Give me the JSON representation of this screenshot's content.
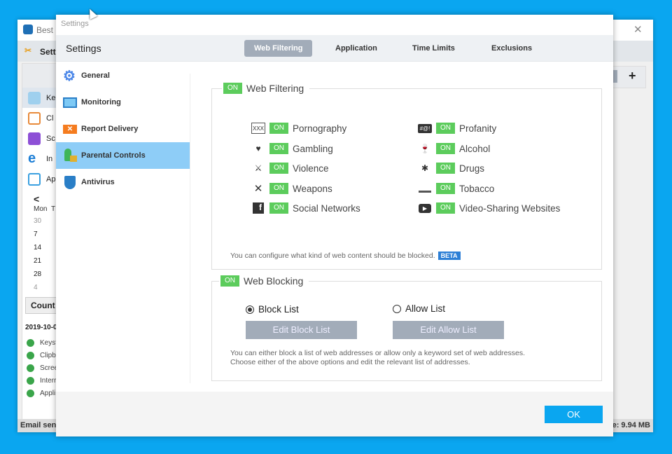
{
  "background_app": {
    "title": "Best F",
    "toolbar_label": "Setti",
    "sidebar_items": [
      "Ke",
      "Cl",
      "Sc",
      "In",
      "Ap"
    ],
    "calendar": {
      "prev": "<",
      "headers": [
        "Mon",
        "T"
      ],
      "mondays": [
        "30",
        "7",
        "14",
        "21",
        "28",
        "4"
      ]
    },
    "count_button": "Count",
    "date": "2019-10-0",
    "status_items": [
      "Keyst",
      "Clipb",
      "Scree",
      "Interr",
      "Appli"
    ],
    "status_left": "Email send",
    "status_right": "ze: 9.94 MB",
    "add_button": "+",
    "close": "✕"
  },
  "dialog": {
    "window_title": "Settings",
    "header_title": "Settings",
    "tabs": [
      {
        "label": "Web Filtering",
        "active": true
      },
      {
        "label": "Application"
      },
      {
        "label": "Time Limits"
      },
      {
        "label": "Exclusions"
      }
    ],
    "nav": [
      {
        "label": "General",
        "icon": "gear-icon"
      },
      {
        "label": "Monitoring",
        "icon": "monitor-icon"
      },
      {
        "label": "Report Delivery",
        "icon": "envelope-icon"
      },
      {
        "label": "Parental Controls",
        "icon": "parental-lock-icon",
        "selected": true
      },
      {
        "label": "Antivirus",
        "icon": "shield-icon"
      }
    ],
    "web_filtering": {
      "toggle": "ON",
      "title": "Web Filtering",
      "categories": [
        {
          "label": "Pornography",
          "toggle": "ON",
          "icon": "xxx-monitor-icon"
        },
        {
          "label": "Gambling",
          "toggle": "ON",
          "icon": "playing-card-icon"
        },
        {
          "label": "Violence",
          "toggle": "ON",
          "icon": "fight-icon"
        },
        {
          "label": "Weapons",
          "toggle": "ON",
          "icon": "crossed-swords-icon"
        },
        {
          "label": "Social Networks",
          "toggle": "ON",
          "icon": "facebook-icon"
        },
        {
          "label": "Profanity",
          "toggle": "ON",
          "icon": "profanity-bubble-icon"
        },
        {
          "label": "Alcohol",
          "toggle": "ON",
          "icon": "bottle-glass-icon"
        },
        {
          "label": "Drugs",
          "toggle": "ON",
          "icon": "cannabis-leaf-icon"
        },
        {
          "label": "Tobacco",
          "toggle": "ON",
          "icon": "cigarette-icon"
        },
        {
          "label": "Video-Sharing Websites",
          "toggle": "ON",
          "icon": "play-button-icon"
        }
      ],
      "note": "You can configure what kind of web content should be blocked.",
      "badge": "BETA"
    },
    "web_blocking": {
      "toggle": "ON",
      "title": "Web Blocking",
      "block_list": {
        "label": "Block List",
        "selected": true,
        "button": "Edit Block List"
      },
      "allow_list": {
        "label": "Allow List",
        "selected": false,
        "button": "Edit Allow List"
      },
      "note_line1": "You can either block a list of web addresses or allow only a keyword set of web addresses.",
      "note_line2": "Choose either of the above options and edit the relevant list of addresses."
    },
    "ok_button": "OK"
  },
  "colors": {
    "accent": "#0aa6f0",
    "on_toggle": "#5ccc5c",
    "selected_nav": "#8ecdf7",
    "disabled_button": "#a2acb9",
    "beta": "#2d7fd6"
  }
}
